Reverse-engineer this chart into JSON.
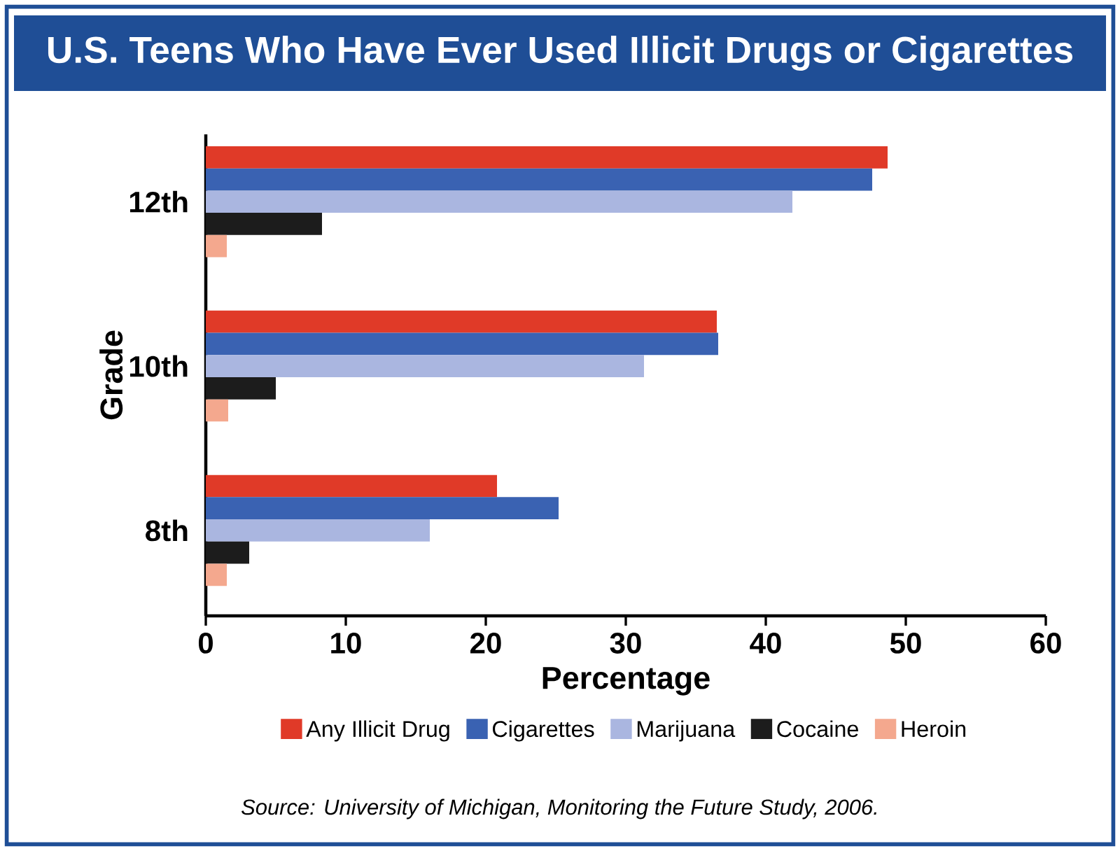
{
  "chart_data": {
    "type": "bar",
    "orientation": "horizontal",
    "title": "U.S. Teens Who Have Ever Used Illicit Drugs or Cigarettes",
    "categories": [
      "12th",
      "10th",
      "8th"
    ],
    "xlabel": "Percentage",
    "ylabel": "Grade",
    "xlim": [
      0,
      60
    ],
    "xticks": [
      0,
      10,
      20,
      30,
      40,
      50,
      60
    ],
    "series": [
      {
        "name": "Any Illicit Drug",
        "color": "#e03a28",
        "values": [
          48.7,
          36.5,
          20.8
        ]
      },
      {
        "name": "Cigarettes",
        "color": "#3a62b2",
        "values": [
          47.6,
          36.6,
          25.2
        ]
      },
      {
        "name": "Marijuana",
        "color": "#aab6e0",
        "values": [
          41.9,
          31.3,
          16.0
        ]
      },
      {
        "name": "Cocaine",
        "color": "#1c1c1c",
        "values": [
          8.3,
          5.0,
          3.1
        ]
      },
      {
        "name": "Heroin",
        "color": "#f4a88e",
        "values": [
          1.5,
          1.6,
          1.5
        ]
      }
    ],
    "legend": "bottom",
    "annotations": [
      "Source: University of Michigan, Monitoring the Future Study, 2006."
    ]
  }
}
